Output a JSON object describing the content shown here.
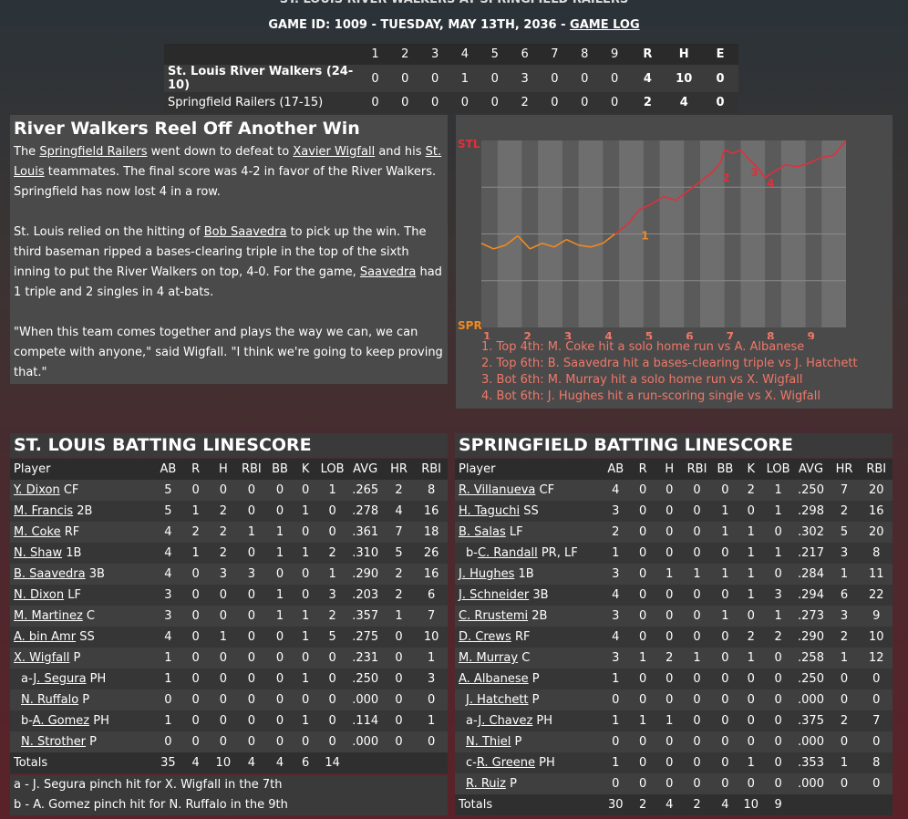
{
  "header": {
    "top_title": "ST. LOUIS RIVER WALKERS AT SPRINGFIELD RAILERS",
    "game_line_prefix": "GAME ID: 1009 - TUESDAY, MAY 13TH, 2036 - ",
    "game_log_link": "GAME LOG"
  },
  "linescore": {
    "innings": [
      "1",
      "2",
      "3",
      "4",
      "5",
      "6",
      "7",
      "8",
      "9"
    ],
    "rhe_labels": [
      "R",
      "H",
      "E"
    ],
    "teams": [
      {
        "name": "St. Louis River Walkers (24-10)",
        "innings": [
          "0",
          "0",
          "0",
          "1",
          "0",
          "3",
          "0",
          "0",
          "0"
        ],
        "rhe": [
          "4",
          "10",
          "0"
        ]
      },
      {
        "name": "Springfield Railers (17-15)",
        "innings": [
          "0",
          "0",
          "0",
          "0",
          "0",
          "2",
          "0",
          "0",
          "0"
        ],
        "rhe": [
          "2",
          "4",
          "0"
        ]
      }
    ]
  },
  "story": {
    "headline": "River Walkers Reel Off Another Win",
    "p1": [
      "The ",
      "Springfield Railers",
      " went down to defeat to ",
      "Xavier Wigfall",
      " and his ",
      "St. Louis",
      " teammates. The final score was 4-2 in favor of the River Walkers. Springfield has now lost 4 in a row."
    ],
    "p2": [
      "St. Louis relied on the hitting of ",
      "Bob Saavedra",
      " to pick up the win. The third baseman ripped a bases-clearing triple in the top of the sixth inning to put the River Walkers on top, 4-0. For the game, ",
      "Saavedra",
      " had 1 triple and 2 singles in 4 at-bats."
    ],
    "p3": "\"When this team comes together and plays the way we can, we can compete with anyone,\" said Wigfall. \"I think we're going to keep proving that.\""
  },
  "chart_data": {
    "type": "line",
    "title": "",
    "top_label": "STL",
    "bottom_label": "SPR",
    "top_color": "#e0303a",
    "bottom_color": "#f08a20",
    "x_labels": [
      "1",
      "2",
      "3",
      "4",
      "5",
      "6",
      "7",
      "8",
      "9"
    ],
    "x": [
      0,
      0.03,
      0.06,
      0.09,
      0.12,
      0.15,
      0.18,
      0.21,
      0.24,
      0.27,
      0.3,
      0.33,
      0.36,
      0.39,
      0.42,
      0.45,
      0.48,
      0.51,
      0.54,
      0.57,
      0.6,
      0.63,
      0.66,
      0.69,
      0.72,
      0.75,
      0.78,
      0.81,
      0.84,
      0.87,
      0.9,
      0.93,
      0.96,
      0.99,
      1.02,
      1.05,
      1.08,
      1.11,
      1.14,
      1.17,
      1.2,
      1.23,
      1.26,
      1.29,
      1.32,
      1.35,
      1.38,
      1.41,
      1.44,
      1.47,
      1.5,
      1.53,
      1.56,
      1.59,
      1.62,
      1.65,
      1.68,
      1.71,
      1.74,
      1.77,
      1.8,
      1.83,
      1.86,
      1.89,
      1.92,
      1.95,
      1.98,
      2.01,
      2.04,
      2.07,
      2.1,
      2.13,
      2.16,
      2.19,
      2.22,
      2.25,
      2.28,
      2.31,
      2.34,
      2.37,
      2.4,
      2.43,
      2.46,
      2.49,
      2.52,
      2.55,
      2.58,
      2.61,
      2.64,
      2.67,
      2.7,
      2.73,
      2.76,
      2.79,
      2.82,
      2.85,
      2.88,
      2.91,
      2.94,
      2.97,
      3.0,
      3.03,
      3.06,
      3.09,
      3.12,
      3.15,
      3.18,
      3.21,
      3.24,
      3.27,
      3.3,
      3.33,
      3.36,
      3.39,
      3.42,
      3.45,
      3.48,
      3.51,
      3.54,
      3.57,
      3.6,
      3.63,
      3.66,
      3.69,
      3.72,
      3.75,
      3.78,
      3.81,
      3.84,
      3.87,
      3.9,
      3.93,
      3.96,
      3.99,
      4.02,
      4.05,
      4.08,
      4.11,
      4.14,
      4.17,
      4.2,
      4.23,
      4.26,
      4.29,
      4.32,
      4.35,
      4.38,
      4.41,
      4.44,
      4.47,
      4.5,
      4.53,
      4.56,
      4.59,
      4.62,
      4.65,
      4.68,
      4.71,
      4.74,
      4.77,
      4.8,
      4.83,
      4.86,
      4.89,
      4.92,
      4.95,
      4.98,
      5.01,
      5.04,
      5.07,
      5.1,
      5.13,
      5.16,
      5.19,
      5.22,
      5.25,
      5.28,
      5.31,
      5.34,
      5.37,
      5.4,
      5.43,
      5.46,
      5.49,
      5.52,
      5.55,
      5.58,
      5.61,
      5.64,
      5.67,
      5.7,
      5.73,
      5.76,
      5.79,
      5.82,
      5.85,
      5.88,
      5.91,
      5.94,
      5.97,
      6.0,
      6.03,
      6.06,
      6.09,
      6.12,
      6.15,
      6.18,
      6.21,
      6.24,
      6.27,
      6.3,
      6.33,
      6.36,
      6.39,
      6.42,
      6.45,
      6.48,
      6.51,
      6.54,
      6.57,
      6.6,
      6.63,
      6.66,
      6.69,
      6.72,
      6.75,
      6.78,
      6.81,
      6.84,
      6.87,
      6.9,
      6.93,
      6.96,
      6.99,
      7.02,
      7.05,
      7.08,
      7.11,
      7.14,
      7.17,
      7.2,
      7.23,
      7.26,
      7.29,
      7.32,
      7.35,
      7.38,
      7.41,
      7.44,
      7.47,
      7.5,
      7.53,
      7.56,
      7.59,
      7.62,
      7.65,
      7.68,
      7.71,
      7.74,
      7.77,
      7.8,
      7.83,
      7.86,
      7.89,
      7.92,
      7.95,
      7.98,
      8.01,
      8.04,
      8.07,
      8.1,
      8.13,
      8.16,
      8.19,
      8.22,
      8.25,
      8.28,
      8.31,
      8.34,
      8.37,
      8.4,
      8.43,
      8.46,
      8.49,
      8.52,
      8.55,
      8.58,
      8.61,
      8.64,
      8.67,
      8.7,
      8.73,
      8.76,
      8.79,
      8.82,
      8.85,
      8.88,
      8.91,
      8.94,
      8.97
    ],
    "series_points": [
      [
        0,
        0.45
      ],
      [
        0.3,
        0.42
      ],
      [
        0.6,
        0.44
      ],
      [
        0.9,
        0.49
      ],
      [
        1.2,
        0.42
      ],
      [
        1.5,
        0.45
      ],
      [
        1.8,
        0.43
      ],
      [
        2.1,
        0.47
      ],
      [
        2.4,
        0.44
      ],
      [
        2.7,
        0.43
      ],
      [
        3.0,
        0.45
      ],
      [
        3.3,
        0.5
      ],
      [
        3.6,
        0.55
      ],
      [
        3.9,
        0.63
      ],
      [
        4.2,
        0.66
      ],
      [
        4.5,
        0.7
      ],
      [
        4.8,
        0.68
      ],
      [
        5.1,
        0.73
      ],
      [
        5.4,
        0.78
      ],
      [
        5.7,
        0.83
      ],
      [
        5.9,
        0.88
      ],
      [
        6.0,
        0.95
      ],
      [
        6.2,
        0.93
      ],
      [
        6.4,
        0.95
      ],
      [
        6.6,
        0.9
      ],
      [
        6.8,
        0.86
      ],
      [
        7.0,
        0.8
      ],
      [
        7.2,
        0.83
      ],
      [
        7.5,
        0.87
      ],
      [
        7.8,
        0.86
      ],
      [
        8.1,
        0.88
      ],
      [
        8.4,
        0.91
      ],
      [
        8.7,
        0.92
      ],
      [
        9.0,
        1.0
      ]
    ],
    "event_markers": [
      {
        "label": "1",
        "x": 3.9,
        "y": 0.49
      },
      {
        "label": "2",
        "x": 5.9,
        "y": 0.8
      },
      {
        "label": "3",
        "x": 6.6,
        "y": 0.83
      },
      {
        "label": "4",
        "x": 7.0,
        "y": 0.77
      }
    ],
    "legend": [
      "1. Top 4th: M. Coke hit a solo home run vs A. Albanese",
      "2. Top 6th: B. Saavedra hit a bases-clearing triple vs J. Hatchett",
      "3. Bot 6th: M. Murray hit a solo home run vs X. Wigfall",
      "4. Bot 6th: J. Hughes hit a run-scoring single vs X. Wigfall"
    ]
  },
  "batting": {
    "columns": [
      "Player",
      "AB",
      "R",
      "H",
      "RBI",
      "BB",
      "K",
      "LOB",
      "AVG",
      "HR",
      "RBI"
    ],
    "stl": {
      "title": "ST. LOUIS BATTING LINESCORE",
      "rows": [
        {
          "prefix": "",
          "name": "Y. Dixon",
          "pos": " CF",
          "stats": [
            "5",
            "0",
            "0",
            "0",
            "0",
            "0",
            "1",
            ".265",
            "2",
            "8"
          ],
          "sub": false
        },
        {
          "prefix": "",
          "name": "M. Francis",
          "pos": " 2B",
          "stats": [
            "5",
            "1",
            "2",
            "0",
            "0",
            "1",
            "0",
            ".278",
            "4",
            "16"
          ],
          "sub": false
        },
        {
          "prefix": "",
          "name": "M. Coke",
          "pos": " RF",
          "stats": [
            "4",
            "2",
            "2",
            "1",
            "1",
            "0",
            "0",
            ".361",
            "7",
            "18"
          ],
          "sub": false
        },
        {
          "prefix": "",
          "name": "N. Shaw",
          "pos": " 1B",
          "stats": [
            "4",
            "1",
            "2",
            "0",
            "1",
            "1",
            "2",
            ".310",
            "5",
            "26"
          ],
          "sub": false
        },
        {
          "prefix": "",
          "name": "B. Saavedra",
          "pos": " 3B",
          "stats": [
            "4",
            "0",
            "3",
            "3",
            "0",
            "0",
            "1",
            ".290",
            "2",
            "16"
          ],
          "sub": false
        },
        {
          "prefix": "",
          "name": "N. Dixon",
          "pos": " LF",
          "stats": [
            "3",
            "0",
            "0",
            "0",
            "1",
            "0",
            "3",
            ".203",
            "2",
            "6"
          ],
          "sub": false
        },
        {
          "prefix": "",
          "name": "M. Martinez",
          "pos": " C",
          "stats": [
            "3",
            "0",
            "0",
            "0",
            "1",
            "1",
            "2",
            ".357",
            "1",
            "7"
          ],
          "sub": false
        },
        {
          "prefix": "",
          "name": "A. bin Amr",
          "pos": " SS",
          "stats": [
            "4",
            "0",
            "1",
            "0",
            "0",
            "1",
            "5",
            ".275",
            "0",
            "10"
          ],
          "sub": false
        },
        {
          "prefix": "",
          "name": "X. Wigfall",
          "pos": " P",
          "stats": [
            "1",
            "0",
            "0",
            "0",
            "0",
            "0",
            "0",
            ".231",
            "0",
            "1"
          ],
          "sub": false
        },
        {
          "prefix": "a-",
          "name": "J. Segura",
          "pos": " PH",
          "stats": [
            "1",
            "0",
            "0",
            "0",
            "0",
            "1",
            "0",
            ".250",
            "0",
            "3"
          ],
          "sub": true
        },
        {
          "prefix": "",
          "name": "N. Ruffalo",
          "pos": " P",
          "stats": [
            "0",
            "0",
            "0",
            "0",
            "0",
            "0",
            "0",
            ".000",
            "0",
            "0"
          ],
          "sub": true
        },
        {
          "prefix": "b-",
          "name": "A. Gomez",
          "pos": " PH",
          "stats": [
            "1",
            "0",
            "0",
            "0",
            "0",
            "1",
            "0",
            ".114",
            "0",
            "1"
          ],
          "sub": true
        },
        {
          "prefix": "",
          "name": "N. Strother",
          "pos": " P",
          "stats": [
            "0",
            "0",
            "0",
            "0",
            "0",
            "0",
            "0",
            ".000",
            "0",
            "0"
          ],
          "sub": true
        }
      ],
      "totals": [
        "Totals",
        "35",
        "4",
        "10",
        "4",
        "4",
        "6",
        "14"
      ],
      "notes": [
        "a - J. Segura pinch hit for X. Wigfall in the 7th",
        "b - A. Gomez pinch hit for N. Ruffalo in the 9th"
      ]
    },
    "spr": {
      "title": "SPRINGFIELD BATTING LINESCORE",
      "rows": [
        {
          "prefix": "",
          "name": "R. Villanueva",
          "pos": " CF",
          "stats": [
            "4",
            "0",
            "0",
            "0",
            "0",
            "2",
            "1",
            ".250",
            "7",
            "20"
          ],
          "sub": false
        },
        {
          "prefix": "",
          "name": "H. Taguchi",
          "pos": " SS",
          "stats": [
            "3",
            "0",
            "0",
            "0",
            "1",
            "0",
            "1",
            ".298",
            "2",
            "16"
          ],
          "sub": false
        },
        {
          "prefix": "",
          "name": "B. Salas",
          "pos": " LF",
          "stats": [
            "2",
            "0",
            "0",
            "0",
            "1",
            "1",
            "0",
            ".302",
            "5",
            "20"
          ],
          "sub": false
        },
        {
          "prefix": "b-",
          "name": "C. Randall",
          "pos": " PR, LF",
          "stats": [
            "1",
            "0",
            "0",
            "0",
            "0",
            "1",
            "1",
            ".217",
            "3",
            "8"
          ],
          "sub": true
        },
        {
          "prefix": "",
          "name": "J. Hughes",
          "pos": " 1B",
          "stats": [
            "3",
            "0",
            "1",
            "1",
            "1",
            "1",
            "0",
            ".284",
            "1",
            "11"
          ],
          "sub": false
        },
        {
          "prefix": "",
          "name": "J. Schneider",
          "pos": " 3B",
          "stats": [
            "4",
            "0",
            "0",
            "0",
            "0",
            "1",
            "3",
            ".294",
            "6",
            "22"
          ],
          "sub": false
        },
        {
          "prefix": "",
          "name": "C. Rrustemi",
          "pos": " 2B",
          "stats": [
            "3",
            "0",
            "0",
            "0",
            "1",
            "0",
            "1",
            ".273",
            "3",
            "9"
          ],
          "sub": false
        },
        {
          "prefix": "",
          "name": "D. Crews",
          "pos": " RF",
          "stats": [
            "4",
            "0",
            "0",
            "0",
            "0",
            "2",
            "2",
            ".290",
            "2",
            "10"
          ],
          "sub": false
        },
        {
          "prefix": "",
          "name": "M. Murray",
          "pos": " C",
          "stats": [
            "3",
            "1",
            "2",
            "1",
            "0",
            "1",
            "0",
            ".258",
            "1",
            "12"
          ],
          "sub": false
        },
        {
          "prefix": "",
          "name": "A. Albanese",
          "pos": " P",
          "stats": [
            "1",
            "0",
            "0",
            "0",
            "0",
            "0",
            "0",
            ".250",
            "0",
            "0"
          ],
          "sub": false
        },
        {
          "prefix": "",
          "name": "J. Hatchett",
          "pos": " P",
          "stats": [
            "0",
            "0",
            "0",
            "0",
            "0",
            "0",
            "0",
            ".000",
            "0",
            "0"
          ],
          "sub": true
        },
        {
          "prefix": "a-",
          "name": "J. Chavez",
          "pos": " PH",
          "stats": [
            "1",
            "1",
            "1",
            "0",
            "0",
            "0",
            "0",
            ".375",
            "2",
            "7"
          ],
          "sub": true
        },
        {
          "prefix": "",
          "name": "N. Thiel",
          "pos": " P",
          "stats": [
            "0",
            "0",
            "0",
            "0",
            "0",
            "0",
            "0",
            ".000",
            "0",
            "0"
          ],
          "sub": true
        },
        {
          "prefix": "c-",
          "name": "R. Greene",
          "pos": " PH",
          "stats": [
            "1",
            "0",
            "0",
            "0",
            "0",
            "1",
            "0",
            ".353",
            "1",
            "8"
          ],
          "sub": true
        },
        {
          "prefix": "",
          "name": "R. Ruiz",
          "pos": " P",
          "stats": [
            "0",
            "0",
            "0",
            "0",
            "0",
            "0",
            "0",
            ".000",
            "0",
            "0"
          ],
          "sub": true
        }
      ],
      "totals": [
        "Totals",
        "30",
        "2",
        "4",
        "2",
        "4",
        "10",
        "9"
      ]
    }
  }
}
